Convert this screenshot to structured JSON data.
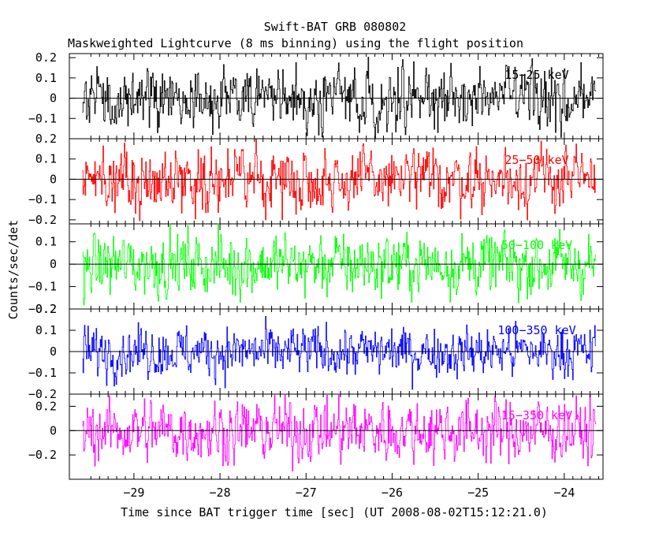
{
  "chart_data": {
    "type": "line",
    "title": "Swift-BAT GRB 080802",
    "subtitle": "Maskweighted Lightcurve (8 ms binning) using the flight position",
    "xlabel": "Time since BAT trigger time [sec] (UT 2008-08-02T15:12:21.0)",
    "ylabel": "Counts/sec/det",
    "xlim": [
      -29.75,
      -23.55
    ],
    "x_ticks": [
      -29,
      -28,
      -27,
      -26,
      -25,
      -24
    ],
    "x_tick_labels": [
      "−29",
      "−28",
      "−27",
      "−26",
      "−25",
      "−24"
    ],
    "data_x_range": [
      -29.6,
      -23.64
    ],
    "bin_width_s": 0.008,
    "grid": false,
    "panels": [
      {
        "label": "15−25 keV",
        "color": "#000000",
        "ylim": [
          -0.2,
          0.22
        ],
        "y_ticks": [
          -0.1,
          0,
          0.1,
          0.2
        ],
        "y_tick_labels": [
          "−0.1",
          "0",
          "0.1",
          "0.2"
        ],
        "noise_std": 0.07
      },
      {
        "label": "25−50 keV",
        "color": "#ff0000",
        "ylim": [
          -0.22,
          0.2
        ],
        "y_ticks": [
          -0.2,
          -0.1,
          0,
          0.1,
          0.2
        ],
        "y_tick_labels": [
          "−0.2",
          "−0.1",
          "0",
          "0.1",
          "0.2"
        ],
        "noise_std": 0.07
      },
      {
        "label": "50−100 keV",
        "color": "#00ff00",
        "ylim": [
          -0.2,
          0.18
        ],
        "y_ticks": [
          -0.2,
          -0.1,
          0,
          0.1
        ],
        "y_tick_labels": [
          "−0.2",
          "−0.1",
          "0",
          "0.1"
        ],
        "noise_std": 0.065
      },
      {
        "label": "100−350 keV",
        "color": "#0000ff",
        "ylim": [
          -0.2,
          0.2
        ],
        "y_ticks": [
          -0.2,
          -0.1,
          0,
          0.1,
          0.2
        ],
        "y_tick_labels": [
          "−0.2",
          "−0.1",
          "0",
          "0.1",
          "0.2"
        ],
        "noise_std": 0.055
      },
      {
        "label": "15−350 keV",
        "color": "#ff00ff",
        "ylim": [
          -0.4,
          0.3
        ],
        "y_ticks": [
          -0.2,
          0,
          0.2
        ],
        "y_tick_labels": [
          "−0.2",
          "0",
          "0.2"
        ],
        "noise_std": 0.12
      }
    ]
  }
}
